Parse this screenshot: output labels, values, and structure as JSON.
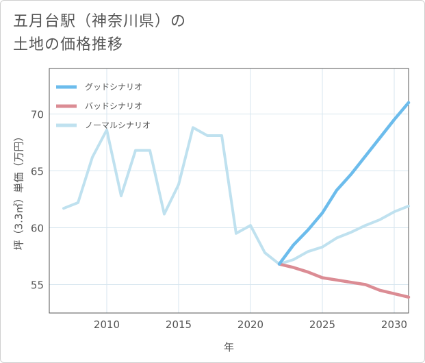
{
  "title_lines": [
    "五月台駅（神奈川県）の",
    "土地の価格推移"
  ],
  "chart_data": {
    "type": "line",
    "xlabel": "年",
    "ylabel": "坪（3.3㎡）単価（万円）",
    "xlim": [
      2006,
      2031
    ],
    "ylim": [
      52.5,
      74
    ],
    "x_ticks": [
      2010,
      2015,
      2020,
      2025,
      2030
    ],
    "y_ticks": [
      55,
      60,
      65,
      70
    ],
    "grid": true,
    "legend_position": "top-left",
    "series": [
      {
        "name": "グッドシナリオ",
        "color": "#6cbcec",
        "x": [
          2022,
          2023,
          2024,
          2025,
          2026,
          2027,
          2028,
          2029,
          2030,
          2031
        ],
        "values": [
          56.8,
          58.5,
          59.8,
          61.3,
          63.3,
          64.7,
          66.3,
          67.9,
          69.5,
          71.0
        ]
      },
      {
        "name": "バッドシナリオ",
        "color": "#db8c94",
        "x": [
          2022,
          2023,
          2024,
          2025,
          2026,
          2027,
          2028,
          2029,
          2030,
          2031
        ],
        "values": [
          56.8,
          56.5,
          56.1,
          55.6,
          55.4,
          55.2,
          55.0,
          54.5,
          54.2,
          53.9
        ]
      },
      {
        "name": "ノーマルシナリオ",
        "color": "#bfe1ef",
        "x": [
          2007,
          2008,
          2009,
          2010,
          2011,
          2012,
          2013,
          2014,
          2015,
          2016,
          2017,
          2018,
          2019,
          2020,
          2021,
          2022,
          2023,
          2024,
          2025,
          2026,
          2027,
          2028,
          2029,
          2030,
          2031
        ],
        "values": [
          61.7,
          62.2,
          66.2,
          68.6,
          62.8,
          66.8,
          66.8,
          61.2,
          63.8,
          68.8,
          68.1,
          68.1,
          59.5,
          60.2,
          57.8,
          56.8,
          57.2,
          57.9,
          58.3,
          59.1,
          59.6,
          60.2,
          60.7,
          61.4,
          61.9
        ]
      }
    ]
  }
}
